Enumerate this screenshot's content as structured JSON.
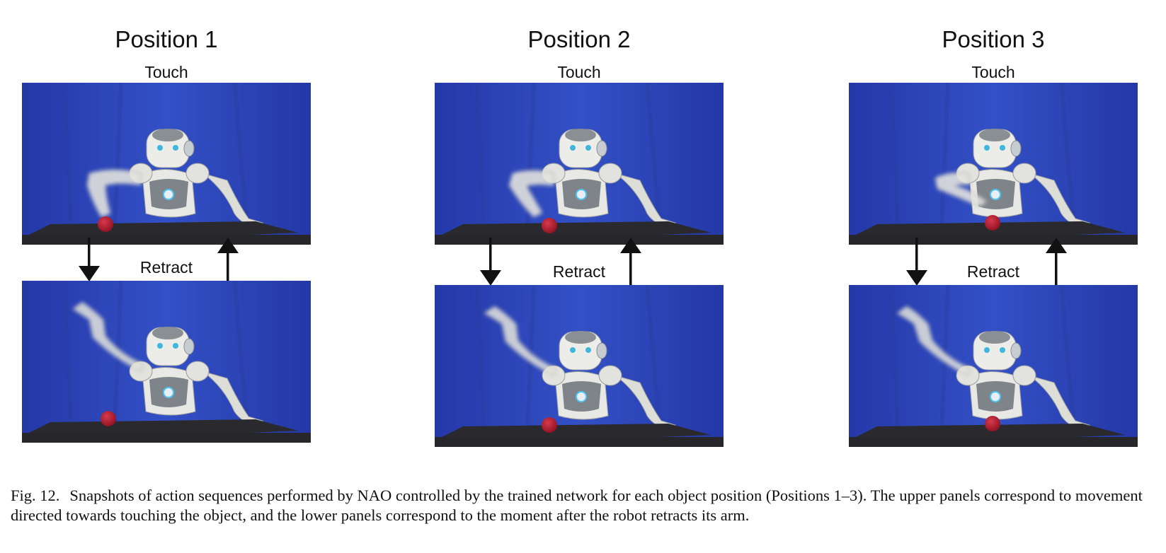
{
  "figure": {
    "columns": [
      {
        "title": "Position 1",
        "touch_label": "Touch",
        "retract_label": "Retract"
      },
      {
        "title": "Position 2",
        "touch_label": "Touch",
        "retract_label": "Retract"
      },
      {
        "title": "Position 3",
        "touch_label": "Touch",
        "retract_label": "Retract"
      }
    ],
    "caption": {
      "fig_number": "Fig. 12.",
      "text": "Snapshots of action sequences performed by NAO controlled by the trained network for each object position (Positions 1–3). The upper panels correspond to movement directed towards touching the object, and the lower panels correspond to the moment after the robot retracts its arm."
    }
  },
  "colors": {
    "backdrop": "#2c43b9",
    "table": "#2a2a2e",
    "ball": "#b3172b",
    "robot_body": "#e6e6e2",
    "robot_accent": "#8a8f94",
    "arrow": "#111111"
  }
}
